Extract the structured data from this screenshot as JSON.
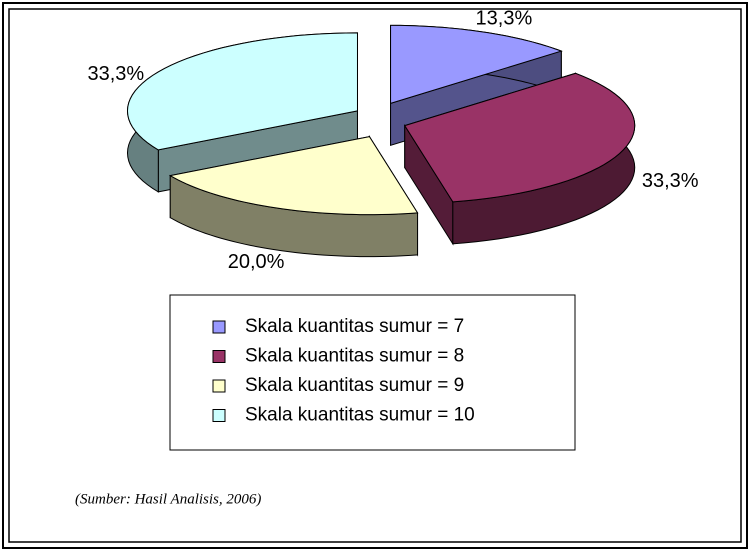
{
  "chart_data": {
    "type": "pie",
    "categories": [
      "Skala kuantitas sumur = 7",
      "Skala kuantitas sumur = 8",
      "Skala kuantitas sumur = 9",
      "Skala kuantitas sumur = 10"
    ],
    "values": [
      13.3,
      33.3,
      20.0,
      33.3
    ],
    "value_labels": [
      "13,3%",
      "33,3%",
      "20,0%",
      "33,3%"
    ],
    "colors": [
      "#9999ff",
      "#993366",
      "#ffffcc",
      "#ccffff"
    ],
    "legend": "bottom",
    "source": "(Sumber: Hasil Analisis, 2006)"
  }
}
